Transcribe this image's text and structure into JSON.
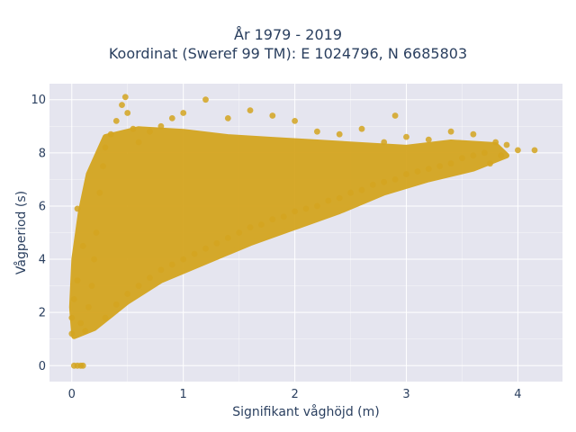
{
  "colors": {
    "plot_bg": "#e5e5ef",
    "grid": "#ffffff",
    "marker": "#d4a520"
  },
  "chart_data": {
    "type": "scatter",
    "title": "År 1979 - 2019",
    "subtitle": "Koordinat (Sweref 99 TM): E 1024796, N 6685803",
    "xlabel": "Signifikant våghöjd (m)",
    "ylabel": "Vågperiod (s)",
    "xlim": [
      -0.2,
      4.4
    ],
    "ylim": [
      -0.6,
      10.6
    ],
    "xticks": [
      0,
      1,
      2,
      3,
      4
    ],
    "yticks": [
      0,
      2,
      4,
      6,
      8,
      10
    ],
    "grid": true,
    "legend": "none",
    "series": [
      {
        "points": [
          [
            0.02,
            0
          ],
          [
            0.05,
            0
          ],
          [
            0.08,
            0
          ],
          [
            0.1,
            0
          ],
          [
            0.0,
            1.2
          ],
          [
            0.0,
            1.8
          ],
          [
            0.02,
            2.5
          ],
          [
            0.05,
            3.2
          ],
          [
            0.08,
            1.6
          ],
          [
            0.1,
            4.5
          ],
          [
            0.05,
            5.9
          ],
          [
            0.12,
            1.3
          ],
          [
            0.15,
            2.2
          ],
          [
            0.18,
            3.0
          ],
          [
            0.2,
            4.0
          ],
          [
            0.22,
            5.0
          ],
          [
            0.25,
            6.5
          ],
          [
            0.28,
            7.5
          ],
          [
            0.3,
            8.2
          ],
          [
            0.35,
            8.7
          ],
          [
            0.4,
            9.2
          ],
          [
            0.45,
            9.8
          ],
          [
            0.48,
            10.1
          ],
          [
            0.5,
            9.5
          ],
          [
            0.55,
            8.9
          ],
          [
            0.3,
            1.8
          ],
          [
            0.4,
            2.3
          ],
          [
            0.5,
            2.7
          ],
          [
            0.6,
            3.0
          ],
          [
            0.7,
            3.3
          ],
          [
            0.8,
            3.6
          ],
          [
            0.9,
            3.8
          ],
          [
            1.0,
            4.0
          ],
          [
            1.1,
            4.2
          ],
          [
            1.2,
            4.4
          ],
          [
            1.3,
            4.6
          ],
          [
            1.4,
            4.8
          ],
          [
            1.5,
            5.0
          ],
          [
            1.6,
            5.2
          ],
          [
            1.7,
            5.3
          ],
          [
            1.8,
            5.5
          ],
          [
            1.9,
            5.6
          ],
          [
            2.0,
            5.8
          ],
          [
            2.1,
            5.9
          ],
          [
            2.2,
            6.0
          ],
          [
            2.3,
            6.2
          ],
          [
            2.4,
            6.3
          ],
          [
            2.5,
            6.5
          ],
          [
            2.6,
            6.6
          ],
          [
            2.7,
            6.8
          ],
          [
            2.8,
            6.9
          ],
          [
            2.9,
            7.0
          ],
          [
            3.0,
            7.2
          ],
          [
            3.1,
            7.3
          ],
          [
            3.2,
            7.4
          ],
          [
            3.3,
            7.5
          ],
          [
            3.4,
            7.6
          ],
          [
            3.5,
            7.8
          ],
          [
            3.6,
            7.9
          ],
          [
            3.7,
            8.0
          ],
          [
            0.6,
            8.4
          ],
          [
            0.7,
            8.8
          ],
          [
            0.8,
            9.0
          ],
          [
            0.9,
            9.3
          ],
          [
            1.0,
            9.5
          ],
          [
            1.2,
            10.0
          ],
          [
            1.4,
            9.3
          ],
          [
            1.6,
            9.6
          ],
          [
            1.8,
            9.4
          ],
          [
            2.0,
            9.2
          ],
          [
            2.2,
            8.8
          ],
          [
            2.4,
            8.7
          ],
          [
            2.6,
            8.9
          ],
          [
            2.8,
            8.4
          ],
          [
            2.9,
            9.4
          ],
          [
            3.0,
            8.6
          ],
          [
            3.2,
            8.5
          ],
          [
            3.4,
            8.8
          ],
          [
            3.6,
            8.7
          ],
          [
            3.8,
            8.4
          ],
          [
            3.9,
            8.3
          ],
          [
            4.0,
            8.1
          ],
          [
            4.15,
            8.1
          ],
          [
            3.75,
            7.6
          ],
          [
            3.85,
            7.9
          ]
        ]
      }
    ]
  }
}
